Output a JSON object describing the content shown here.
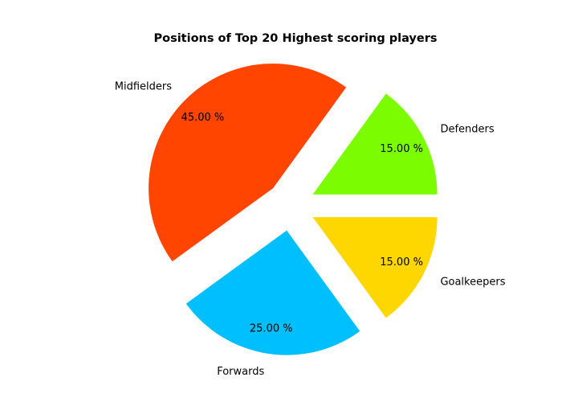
{
  "chart_data": {
    "type": "pie",
    "title": "Positions of Top 20 Highest scoring players",
    "slices": [
      {
        "label": "Defenders",
        "value": 15,
        "pct_label": "15.00 %",
        "color": "#7CFC00"
      },
      {
        "label": "Midfielders",
        "value": 45,
        "pct_label": "45.00 %",
        "color": "#FF4500"
      },
      {
        "label": "Forwards",
        "value": 25,
        "pct_label": "25.00 %",
        "color": "#00BFFF"
      },
      {
        "label": "Goalkeepers",
        "value": 15,
        "pct_label": "15.00 %",
        "color": "#FFD700"
      }
    ],
    "start_angle_deg": 0,
    "direction": "counterclockwise",
    "exploded": true
  }
}
